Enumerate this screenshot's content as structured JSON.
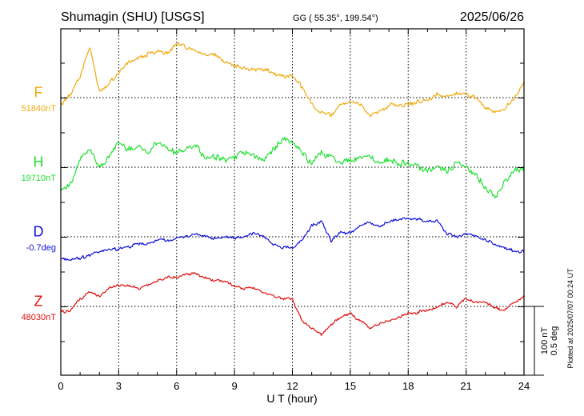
{
  "header": {
    "station": "Shumagin (SHU)  [USGS]",
    "coords": "GG ( 55.35°, 199.54°)",
    "date": "2025/06/26"
  },
  "side_note": "Plotted at 2025/07/07 00:24 UT",
  "scale_bar": {
    "label1": "100 nT",
    "label2": "0.5 deg"
  },
  "chart_data": {
    "type": "line",
    "xlabel": "U T (hour)",
    "xlim": [
      0,
      24
    ],
    "xticks": [
      0,
      3,
      6,
      9,
      12,
      15,
      18,
      21,
      24
    ],
    "x": [
      0,
      0.5,
      1,
      1.5,
      2,
      2.5,
      3,
      3.5,
      4,
      4.5,
      5,
      5.5,
      6,
      6.5,
      7,
      7.5,
      8,
      8.5,
      9,
      9.5,
      10,
      10.5,
      11,
      11.5,
      12,
      12.5,
      13,
      13.5,
      14,
      14.5,
      15,
      15.5,
      16,
      16.5,
      17,
      17.5,
      18,
      18.5,
      19,
      19.5,
      20,
      20.5,
      21,
      21.5,
      22,
      22.5,
      23,
      23.5,
      24
    ],
    "series": [
      {
        "name": "F",
        "baseline_label": "51840nT",
        "color": "#f0aa10",
        "baseline_level": 0,
        "values": [
          -10,
          5,
          30,
          70,
          10,
          20,
          35,
          50,
          55,
          60,
          65,
          60,
          75,
          70,
          65,
          60,
          60,
          50,
          45,
          40,
          40,
          40,
          35,
          30,
          30,
          15,
          -10,
          -20,
          -25,
          -10,
          -5,
          -10,
          -25,
          -20,
          -10,
          -10,
          -10,
          -5,
          -5,
          5,
          0,
          5,
          5,
          0,
          -15,
          -20,
          -15,
          0,
          20
        ]
      },
      {
        "name": "H",
        "baseline_label": "19710nT",
        "color": "#22e034",
        "baseline_level": 0,
        "values": [
          -30,
          -25,
          10,
          25,
          0,
          15,
          35,
          25,
          30,
          20,
          35,
          25,
          20,
          25,
          30,
          10,
          15,
          10,
          15,
          20,
          15,
          10,
          25,
          40,
          35,
          20,
          5,
          20,
          15,
          5,
          10,
          15,
          15,
          5,
          10,
          5,
          5,
          0,
          -5,
          0,
          -5,
          5,
          0,
          -10,
          -30,
          -40,
          -20,
          -5,
          0
        ]
      },
      {
        "name": "D",
        "baseline_label": "-0.7deg",
        "color": "#1010d8",
        "baseline_level": 0,
        "values": [
          -30,
          -32,
          -30,
          -25,
          -20,
          -18,
          -17,
          -14,
          -10,
          -10,
          -5,
          -5,
          -2,
          0,
          5,
          0,
          -3,
          0,
          -2,
          0,
          5,
          0,
          -10,
          -15,
          -15,
          -5,
          15,
          22,
          -5,
          5,
          5,
          15,
          20,
          15,
          20,
          25,
          25,
          25,
          20,
          22,
          5,
          0,
          5,
          0,
          -5,
          -10,
          -15,
          -20,
          -20
        ]
      },
      {
        "name": "Z",
        "baseline_label": "48030nT",
        "color": "#e01010",
        "baseline_level": 0,
        "values": [
          -8,
          -5,
          10,
          20,
          15,
          25,
          30,
          30,
          25,
          30,
          35,
          40,
          40,
          45,
          45,
          40,
          35,
          35,
          28,
          25,
          25,
          20,
          15,
          10,
          10,
          -20,
          -30,
          -40,
          -25,
          -15,
          -10,
          -20,
          -30,
          -25,
          -20,
          -15,
          -10,
          -8,
          -5,
          0,
          5,
          0,
          10,
          5,
          5,
          -2,
          -5,
          5,
          15
        ]
      }
    ],
    "grid": true
  }
}
